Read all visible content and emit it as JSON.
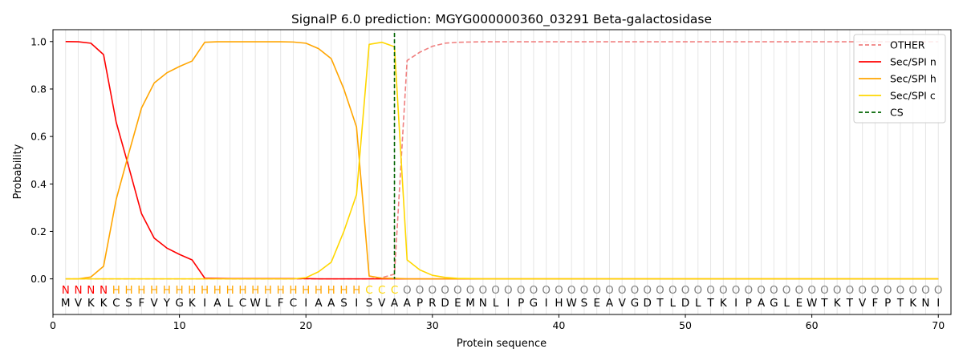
{
  "chart_data": {
    "type": "line",
    "title": "SignalP 6.0 prediction: MGYG000000360_03291 Beta-galactosidase",
    "xlabel": "Protein sequence",
    "ylabel": "Probability",
    "xlim": [
      0,
      71
    ],
    "ylim": [
      -0.15,
      1.05
    ],
    "xticks": [
      0,
      10,
      20,
      30,
      40,
      50,
      60,
      70
    ],
    "yticks": [
      0.0,
      0.2,
      0.4,
      0.6,
      0.8,
      1.0
    ],
    "ytick_labels": [
      "0.0",
      "0.2",
      "0.4",
      "0.6",
      "0.8",
      "1.0"
    ],
    "grid": "vertical lines at each residue position",
    "legend_position": "top-right",
    "sequence": [
      "M",
      "V",
      "K",
      "K",
      "C",
      "S",
      "F",
      "V",
      "Y",
      "G",
      "K",
      "I",
      "A",
      "L",
      "C",
      "W",
      "L",
      "F",
      "C",
      "I",
      "A",
      "A",
      "S",
      "I",
      "S",
      "V",
      "A",
      "A",
      "P",
      "R",
      "D",
      "E",
      "M",
      "N",
      "L",
      "I",
      "P",
      "G",
      "I",
      "H",
      "W",
      "S",
      "E",
      "A",
      "V",
      "G",
      "D",
      "T",
      "L",
      "D",
      "L",
      "T",
      "K",
      "I",
      "P",
      "A",
      "G",
      "L",
      "E",
      "W",
      "T",
      "K",
      "T",
      "V",
      "F",
      "P",
      "T",
      "K",
      "N",
      "I"
    ],
    "labels": [
      "N",
      "N",
      "N",
      "N",
      "H",
      "H",
      "H",
      "H",
      "H",
      "H",
      "H",
      "H",
      "H",
      "H",
      "H",
      "H",
      "H",
      "H",
      "H",
      "H",
      "H",
      "H",
      "H",
      "H",
      "C",
      "C",
      "C",
      "O",
      "O",
      "O",
      "O",
      "O",
      "O",
      "O",
      "O",
      "O",
      "O",
      "O",
      "O",
      "O",
      "O",
      "O",
      "O",
      "O",
      "O",
      "O",
      "O",
      "O",
      "O",
      "O",
      "O",
      "O",
      "O",
      "O",
      "O",
      "O",
      "O",
      "O",
      "O",
      "O",
      "O",
      "O",
      "O",
      "O",
      "O",
      "O",
      "O",
      "O",
      "O",
      "O"
    ],
    "label_colors": {
      "N": "#ff0000",
      "H": "#ffa500",
      "C": "#ffd700",
      "O": "#808080"
    },
    "x": [
      1,
      2,
      3,
      4,
      5,
      6,
      7,
      8,
      9,
      10,
      11,
      12,
      13,
      14,
      15,
      16,
      17,
      18,
      19,
      20,
      21,
      22,
      23,
      24,
      25,
      26,
      27,
      28,
      29,
      30,
      31,
      32,
      33,
      34,
      35,
      36,
      37,
      38,
      39,
      40,
      41,
      42,
      43,
      44,
      45,
      46,
      47,
      48,
      49,
      50,
      51,
      52,
      53,
      54,
      55,
      56,
      57,
      58,
      59,
      60,
      61,
      62,
      63,
      64,
      65,
      66,
      67,
      68,
      69,
      70
    ],
    "series": [
      {
        "name": "OTHER",
        "color": "#f08080",
        "dash": true,
        "values": [
          0,
          0,
          0,
          0,
          0,
          0,
          0,
          0,
          0,
          0,
          0,
          0,
          0,
          0,
          0,
          0,
          0,
          0,
          0,
          0,
          0,
          0,
          0,
          0,
          0,
          0.005,
          0.02,
          0.92,
          0.955,
          0.98,
          0.993,
          0.997,
          0.998,
          0.999,
          0.999,
          0.999,
          0.999,
          0.999,
          0.999,
          0.999,
          0.999,
          0.999,
          0.999,
          0.999,
          0.999,
          0.999,
          0.999,
          0.999,
          0.999,
          0.999,
          0.999,
          0.999,
          0.999,
          0.999,
          0.999,
          0.999,
          0.999,
          0.999,
          0.999,
          0.999,
          0.999,
          0.999,
          0.999,
          0.999,
          0.999,
          0.999,
          0.999,
          0.999,
          0.999,
          0.999
        ]
      },
      {
        "name": "Sec/SPI n",
        "color": "#ff0000",
        "dash": false,
        "values": [
          1.0,
          0.999,
          0.993,
          0.945,
          0.66,
          0.47,
          0.275,
          0.172,
          0.13,
          0.103,
          0.08,
          0.003,
          0.002,
          0.001,
          0.001,
          0.001,
          0.001,
          0.001,
          0.001,
          0.001,
          0,
          0,
          0,
          0,
          0,
          0,
          0,
          0,
          0,
          0,
          0,
          0,
          0,
          0,
          0,
          0,
          0,
          0,
          0,
          0,
          0,
          0,
          0,
          0,
          0,
          0,
          0,
          0,
          0,
          0,
          0,
          0,
          0,
          0,
          0,
          0,
          0,
          0,
          0,
          0,
          0,
          0,
          0,
          0,
          0,
          0,
          0,
          0,
          0,
          0
        ]
      },
      {
        "name": "Sec/SPI h",
        "color": "#ffa500",
        "dash": false,
        "values": [
          0,
          0,
          0.008,
          0.053,
          0.335,
          0.53,
          0.72,
          0.825,
          0.868,
          0.895,
          0.918,
          0.997,
          0.999,
          0.999,
          0.999,
          0.999,
          0.999,
          0.999,
          0.998,
          0.993,
          0.97,
          0.928,
          0.8,
          0.64,
          0.012,
          0.003,
          0.002,
          0,
          0,
          0,
          0,
          0,
          0,
          0,
          0,
          0,
          0,
          0,
          0,
          0,
          0,
          0,
          0,
          0,
          0,
          0,
          0,
          0,
          0,
          0,
          0,
          0,
          0,
          0,
          0,
          0,
          0,
          0,
          0,
          0,
          0,
          0,
          0,
          0,
          0,
          0,
          0,
          0,
          0,
          0
        ]
      },
      {
        "name": "Sec/SPI c",
        "color": "#ffd700",
        "dash": false,
        "values": [
          0,
          0,
          0,
          0,
          0,
          0,
          0,
          0,
          0,
          0,
          0,
          0,
          0,
          0,
          0,
          0,
          0,
          0,
          0,
          0.005,
          0.03,
          0.07,
          0.2,
          0.355,
          0.988,
          0.997,
          0.978,
          0.08,
          0.038,
          0.015,
          0.006,
          0.002,
          0.001,
          0,
          0,
          0,
          0,
          0,
          0,
          0,
          0,
          0,
          0,
          0,
          0,
          0,
          0,
          0,
          0,
          0,
          0,
          0,
          0,
          0,
          0,
          0,
          0,
          0,
          0,
          0,
          0,
          0,
          0,
          0,
          0,
          0,
          0,
          0,
          0,
          0
        ]
      }
    ],
    "cs": {
      "name": "CS",
      "x": 27,
      "color": "#006400"
    }
  }
}
